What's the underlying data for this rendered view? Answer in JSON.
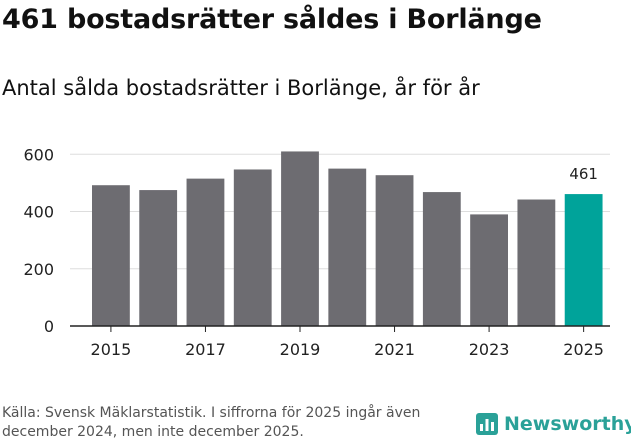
{
  "headline": "461 bostadsrätter såldes i Borlänge",
  "subtitle": "Antal sålda bostadsrätter i Borlänge, år för år",
  "source": "Källa: Svensk Mäklarstatistik. I siffrorna för 2025 ingår även december 2024, men inte december 2025.",
  "brand": {
    "name": "Newsworthy",
    "icon": "newsworthy-logo-icon",
    "color": "#2aa198"
  },
  "colors": {
    "bar": "#6d6c71",
    "highlight": "#00a39a",
    "grid": "#dddddd",
    "axis": "#222222"
  },
  "chart_data": {
    "type": "bar",
    "title": "Antal sålda bostadsrätter i Borlänge, år för år",
    "categories": [
      "2015",
      "2016",
      "2017",
      "2018",
      "2019",
      "2020",
      "2021",
      "2022",
      "2023",
      "2024",
      "2025"
    ],
    "values": [
      492,
      475,
      515,
      547,
      610,
      550,
      527,
      468,
      390,
      442,
      461
    ],
    "highlight_index": 10,
    "data_labels": [
      {
        "index": 10,
        "text": "461"
      }
    ],
    "x_tick_labels": [
      "2015",
      "2017",
      "2019",
      "2021",
      "2023",
      "2025"
    ],
    "y_ticks": [
      0,
      200,
      400,
      600
    ],
    "ylim": [
      0,
      650
    ],
    "xlabel": "",
    "ylabel": "",
    "grid": true
  }
}
